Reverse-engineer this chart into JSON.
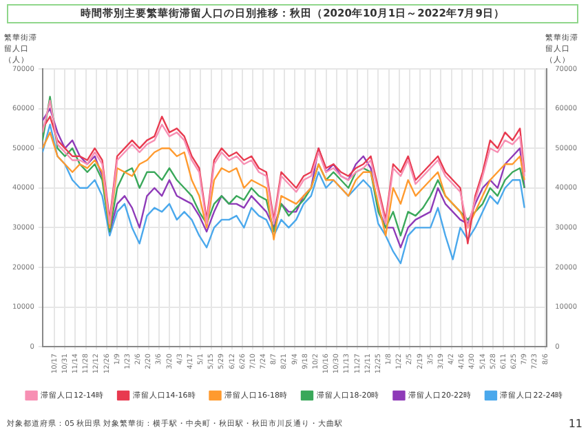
{
  "chart_data": {
    "type": "line",
    "title": "時間帯別主要繁華街滞留人口の日別推移：秋田（2020年10月1日～2022年7月9日）",
    "ylabel": "繁華街滞留人口（人）",
    "y2label": "繁華街滞留人口（人）",
    "x": [
      "2020-10-01",
      "2020-10-11",
      "2020-10-21",
      "2020-10-31",
      "2020-11-10",
      "2020-11-20",
      "2020-11-30",
      "2020-12-10",
      "2020-12-20",
      "2020-12-30",
      "2021-01-09",
      "2021-01-19",
      "2021-01-29",
      "2021-02-08",
      "2021-02-18",
      "2021-02-28",
      "2021-03-10",
      "2021-03-20",
      "2021-03-30",
      "2021-04-09",
      "2021-04-19",
      "2021-04-29",
      "2021-05-09",
      "2021-05-19",
      "2021-05-29",
      "2021-06-08",
      "2021-06-18",
      "2021-06-28",
      "2021-07-08",
      "2021-07-18",
      "2021-07-28",
      "2021-08-07",
      "2021-08-17",
      "2021-08-27",
      "2021-09-06",
      "2021-09-16",
      "2021-09-26",
      "2021-10-06",
      "2021-10-16",
      "2021-10-26",
      "2021-11-05",
      "2021-11-15",
      "2021-11-25",
      "2021-12-05",
      "2021-12-15",
      "2021-12-25",
      "2022-01-04",
      "2022-01-14",
      "2022-01-24",
      "2022-02-03",
      "2022-02-13",
      "2022-02-23",
      "2022-03-05",
      "2022-03-15",
      "2022-03-25",
      "2022-04-04",
      "2022-04-14",
      "2022-04-24",
      "2022-05-04",
      "2022-05-14",
      "2022-05-24",
      "2022-06-03",
      "2022-06-13",
      "2022-06-23",
      "2022-07-03",
      "2022-07-09"
    ],
    "series": [
      {
        "name": "滞留人口12-14時",
        "color": "#f78fb3",
        "values": [
          54000,
          62000,
          51000,
          49000,
          47000,
          47000,
          46000,
          49000,
          46000,
          31000,
          47000,
          49000,
          51000,
          49000,
          51000,
          52000,
          56000,
          53000,
          54000,
          52000,
          47000,
          44000,
          31000,
          46000,
          49000,
          47000,
          48000,
          46000,
          47000,
          44000,
          43000,
          31000,
          43000,
          41000,
          39000,
          42000,
          43000,
          49000,
          44000,
          45000,
          43000,
          42000,
          44000,
          45000,
          47000,
          39000,
          31000,
          45000,
          43000,
          47000,
          41000,
          43000,
          45000,
          47000,
          43000,
          41000,
          39000,
          30000,
          37000,
          43000,
          50000,
          49000,
          52000,
          51000,
          53000,
          43000
        ]
      },
      {
        "name": "滞留人口14-16時",
        "color": "#e83a4f",
        "values": [
          55000,
          58000,
          52000,
          50000,
          48000,
          48000,
          47000,
          50000,
          47000,
          32000,
          48000,
          50000,
          52000,
          50000,
          52000,
          53000,
          58000,
          54000,
          55000,
          53000,
          48000,
          45000,
          32000,
          47000,
          50000,
          48000,
          49000,
          47000,
          48000,
          45000,
          44000,
          32000,
          44000,
          42000,
          40000,
          43000,
          44000,
          50000,
          45000,
          46000,
          44000,
          43000,
          45000,
          46000,
          48000,
          40000,
          32000,
          46000,
          44000,
          48000,
          42000,
          44000,
          46000,
          48000,
          44000,
          42000,
          40000,
          26000,
          38000,
          44000,
          52000,
          50000,
          54000,
          52000,
          55000,
          44000
        ]
      },
      {
        "name": "滞留人口16-18時",
        "color": "#ff9a2e",
        "values": [
          50000,
          54000,
          48000,
          46000,
          44000,
          46000,
          45000,
          47000,
          44000,
          30000,
          45000,
          44000,
          43000,
          46000,
          47000,
          49000,
          50000,
          50000,
          48000,
          49000,
          42000,
          38000,
          30000,
          42000,
          45000,
          44000,
          45000,
          40000,
          42000,
          41000,
          40000,
          27000,
          38000,
          37000,
          36000,
          38000,
          40000,
          46000,
          42000,
          42000,
          40000,
          38000,
          42000,
          44000,
          44000,
          36000,
          28000,
          40000,
          36000,
          42000,
          38000,
          40000,
          42000,
          44000,
          38000,
          36000,
          34000,
          30000,
          34000,
          38000,
          42000,
          44000,
          46000,
          46000,
          48000,
          42000
        ]
      },
      {
        "name": "滞留人口18-20時",
        "color": "#3aa85a",
        "values": [
          52000,
          63000,
          50000,
          48000,
          50000,
          46000,
          44000,
          46000,
          42000,
          29000,
          40000,
          44000,
          45000,
          40000,
          44000,
          44000,
          42000,
          45000,
          42000,
          40000,
          38000,
          34000,
          31000,
          36000,
          38000,
          36000,
          38000,
          37000,
          40000,
          38000,
          37000,
          29000,
          36000,
          33000,
          35000,
          37000,
          40000,
          46000,
          42000,
          44000,
          42000,
          40000,
          44000,
          45000,
          44000,
          34000,
          30000,
          34000,
          28000,
          34000,
          33000,
          35000,
          38000,
          42000,
          38000,
          36000,
          34000,
          32000,
          34000,
          36000,
          40000,
          38000,
          42000,
          44000,
          45000,
          40000
        ]
      },
      {
        "name": "滞留人口20-22時",
        "color": "#8e3ab8",
        "values": [
          57000,
          60000,
          54000,
          50000,
          52000,
          48000,
          46000,
          48000,
          43000,
          29000,
          36000,
          38000,
          35000,
          30000,
          38000,
          40000,
          38000,
          42000,
          38000,
          37000,
          36000,
          33000,
          29000,
          34000,
          38000,
          36000,
          36000,
          35000,
          38000,
          36000,
          34000,
          30000,
          36000,
          34000,
          34000,
          38000,
          40000,
          50000,
          44000,
          46000,
          43000,
          42000,
          46000,
          48000,
          45000,
          35000,
          30000,
          30000,
          25000,
          30000,
          32000,
          33000,
          34000,
          40000,
          36000,
          34000,
          32000,
          31000,
          36000,
          40000,
          42000,
          40000,
          46000,
          48000,
          50000,
          40000
        ]
      },
      {
        "name": "滞留人口22-24時",
        "color": "#4aa8ec",
        "values": [
          49000,
          56000,
          48000,
          46000,
          42000,
          40000,
          40000,
          42000,
          38000,
          28000,
          34000,
          36000,
          30000,
          26000,
          33000,
          35000,
          34000,
          36000,
          32000,
          34000,
          32000,
          28000,
          25000,
          30000,
          32000,
          32000,
          33000,
          30000,
          35000,
          33000,
          32000,
          28000,
          32000,
          30000,
          32000,
          36000,
          38000,
          44000,
          40000,
          42000,
          40000,
          38000,
          40000,
          42000,
          40000,
          31000,
          28000,
          24000,
          21000,
          28000,
          30000,
          30000,
          30000,
          35000,
          28000,
          22000,
          30000,
          27000,
          30000,
          34000,
          38000,
          36000,
          40000,
          42000,
          42000,
          35000
        ]
      }
    ],
    "xlim": [
      "2020-10-01",
      "2022-08-08"
    ],
    "xticks": [
      {
        "value": "2020-10-17",
        "label": "10/17"
      },
      {
        "value": "2020-10-31",
        "label": "10/31"
      },
      {
        "value": "2020-11-14",
        "label": "11/14"
      },
      {
        "value": "2020-11-28",
        "label": "11/28"
      },
      {
        "value": "2020-12-12",
        "label": "12/12"
      },
      {
        "value": "2020-12-26",
        "label": "12/26"
      },
      {
        "value": "2021-01-09",
        "label": "1/9"
      },
      {
        "value": "2021-01-23",
        "label": "1/23"
      },
      {
        "value": "2021-02-06",
        "label": "2/6"
      },
      {
        "value": "2021-02-20",
        "label": "2/20"
      },
      {
        "value": "2021-03-06",
        "label": "3/6"
      },
      {
        "value": "2021-03-20",
        "label": "3/20"
      },
      {
        "value": "2021-04-03",
        "label": "4/3"
      },
      {
        "value": "2021-04-17",
        "label": "4/17"
      },
      {
        "value": "2021-05-01",
        "label": "5/1"
      },
      {
        "value": "2021-05-15",
        "label": "5/15"
      },
      {
        "value": "2021-05-29",
        "label": "5/29"
      },
      {
        "value": "2021-06-12",
        "label": "6/12"
      },
      {
        "value": "2021-06-26",
        "label": "6/26"
      },
      {
        "value": "2021-07-10",
        "label": "7/10"
      },
      {
        "value": "2021-07-24",
        "label": "7/24"
      },
      {
        "value": "2021-08-07",
        "label": "8/7"
      },
      {
        "value": "2021-08-21",
        "label": "8/21"
      },
      {
        "value": "2021-09-04",
        "label": "9/4"
      },
      {
        "value": "2021-09-18",
        "label": "9/18"
      },
      {
        "value": "2021-10-02",
        "label": "10/2"
      },
      {
        "value": "2021-10-16",
        "label": "10/16"
      },
      {
        "value": "2021-10-30",
        "label": "10/30"
      },
      {
        "value": "2021-11-13",
        "label": "11/13"
      },
      {
        "value": "2021-11-27",
        "label": "11/27"
      },
      {
        "value": "2021-12-11",
        "label": "12/11"
      },
      {
        "value": "2021-12-25",
        "label": "12/25"
      },
      {
        "value": "2022-01-08",
        "label": "1/8"
      },
      {
        "value": "2022-01-22",
        "label": "1/22"
      },
      {
        "value": "2022-02-05",
        "label": "2/5"
      },
      {
        "value": "2022-02-19",
        "label": "2/19"
      },
      {
        "value": "2022-03-05",
        "label": "3/5"
      },
      {
        "value": "2022-03-19",
        "label": "3/19"
      },
      {
        "value": "2022-04-02",
        "label": "4/2"
      },
      {
        "value": "2022-04-16",
        "label": "4/16"
      },
      {
        "value": "2022-04-30",
        "label": "4/30"
      },
      {
        "value": "2022-05-14",
        "label": "5/14"
      },
      {
        "value": "2022-05-28",
        "label": "5/28"
      },
      {
        "value": "2022-06-11",
        "label": "6/11"
      },
      {
        "value": "2022-06-25",
        "label": "6/25"
      },
      {
        "value": "2022-07-09",
        "label": "7/9"
      },
      {
        "value": "2022-07-23",
        "label": "7/23"
      },
      {
        "value": "2022-08-06",
        "label": "8/6"
      }
    ],
    "ylim": [
      0,
      70000
    ],
    "yticks": [
      0,
      10000,
      20000,
      30000,
      40000,
      50000,
      60000,
      70000
    ],
    "y2lim": [
      0,
      70000
    ],
    "y2ticks": [
      0,
      10000,
      20000,
      30000,
      40000,
      50000,
      60000,
      70000
    ],
    "grid": true,
    "legend": "bottom",
    "marker": "none",
    "line_style": "solid",
    "annotations": [
      "対象都道府県：05 秋田県",
      "対象繁華街：横手駅・中央町・秋田駅・秋田市川反通り・大曲駅",
      "11"
    ]
  }
}
